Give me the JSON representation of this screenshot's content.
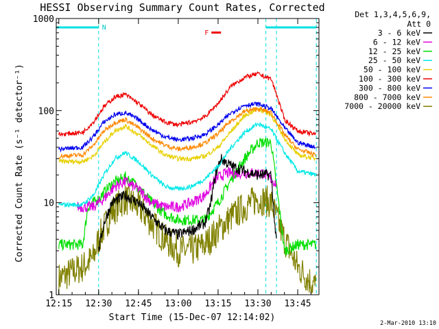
{
  "chart_data": {
    "type": "line",
    "title": "HESSI Observing Summary Count Rates, Corrected",
    "xlabel": "Start Time (15-Dec-07 12:14:02)",
    "ylabel": "Corrected Count Rate (s⁻¹ detector⁻¹)",
    "y_scale": "log",
    "ylim": [
      1,
      1000
    ],
    "xlim": [
      "12:14:02",
      "13:53"
    ],
    "x_tick_labels": [
      "12:15",
      "12:30",
      "12:45",
      "13:00",
      "13:15",
      "13:30",
      "13:45"
    ],
    "y_tick_labels": [
      "1",
      "10",
      "100",
      "1000"
    ],
    "legend_title_line1": "Det 1,3,4,5,6,9,",
    "legend_title_line2": "Att 0",
    "legend_position": "right, outside plot",
    "footer_text": "2-Mar-2010 13:10",
    "flag_labels": {
      "night": "N",
      "flare": "F"
    },
    "night_segments": [
      {
        "start": "12:14",
        "end": "12:30"
      },
      {
        "start": "13:33",
        "end": "13:52"
      }
    ],
    "vertical_markers": [
      "12:30",
      "13:33",
      "13:37",
      "13:52"
    ],
    "flare_flag_time": "13:13",
    "series": [
      {
        "name": "3 - 6 keV",
        "color": "#000000",
        "x": [
          "12:30",
          "12:32",
          "12:35",
          "12:40",
          "12:45",
          "12:50",
          "12:55",
          "13:00",
          "13:05",
          "13:10",
          "13:12",
          "13:14",
          "13:16",
          "13:20",
          "13:25",
          "13:30",
          "13:35",
          "13:37"
        ],
        "values": [
          3,
          6,
          10,
          12,
          10,
          7,
          5,
          4.5,
          5,
          6,
          9,
          20,
          30,
          25,
          22,
          20,
          20,
          3.5
        ]
      },
      {
        "name": "6 - 12 keV",
        "color": "#e000e0",
        "x": [
          "12:22",
          "12:28",
          "12:32",
          "12:36",
          "12:40",
          "12:45",
          "12:50",
          "12:55",
          "13:00",
          "13:05",
          "13:10",
          "13:14",
          "13:18",
          "13:25",
          "13:32",
          "13:37"
        ],
        "values": [
          9,
          9,
          11,
          15,
          17,
          14,
          10,
          9,
          9,
          10,
          12,
          18,
          21,
          21,
          21,
          16
        ]
      },
      {
        "name": "12 - 25 keV",
        "color": "#00e000",
        "x": [
          "12:15",
          "12:24",
          "12:26",
          "12:30",
          "12:35",
          "12:40",
          "12:45",
          "12:50",
          "12:55",
          "13:00",
          "13:05",
          "13:10",
          "13:15",
          "13:20",
          "13:25",
          "13:30",
          "13:35",
          "13:40",
          "13:45",
          "13:52"
        ],
        "values": [
          3.5,
          3.5,
          9,
          11,
          16,
          19,
          15,
          10,
          7.5,
          6.5,
          6.5,
          6.5,
          10,
          18,
          30,
          45,
          45,
          3,
          3.5,
          3.5
        ]
      },
      {
        "name": "25 - 50 keV",
        "color": "#00e8e8",
        "x": [
          "12:15",
          "12:24",
          "12:28",
          "12:32",
          "12:36",
          "12:40",
          "12:45",
          "12:50",
          "12:55",
          "13:00",
          "13:05",
          "13:10",
          "13:15",
          "13:20",
          "13:25",
          "13:30",
          "13:35",
          "13:40",
          "13:45",
          "13:52"
        ],
        "values": [
          9.5,
          9.5,
          12,
          20,
          30,
          35,
          28,
          20,
          15,
          14,
          15,
          18,
          25,
          40,
          58,
          72,
          62,
          35,
          22,
          20
        ]
      },
      {
        "name": "50 - 100 keV",
        "color": "#e8d000",
        "x": [
          "12:15",
          "12:24",
          "12:28",
          "12:32",
          "12:36",
          "12:40",
          "12:45",
          "12:50",
          "12:55",
          "13:00",
          "13:05",
          "13:10",
          "13:15",
          "13:20",
          "13:25",
          "13:30",
          "13:35",
          "13:40",
          "13:45",
          "13:52"
        ],
        "values": [
          28,
          28,
          32,
          45,
          60,
          68,
          55,
          42,
          33,
          30,
          30,
          32,
          40,
          60,
          88,
          105,
          90,
          50,
          33,
          30
        ]
      },
      {
        "name": "100 - 300 keV",
        "color": "#ee0000",
        "x": [
          "12:15",
          "12:24",
          "12:28",
          "12:32",
          "12:36",
          "12:40",
          "12:45",
          "12:50",
          "12:55",
          "13:00",
          "13:05",
          "13:10",
          "13:15",
          "13:20",
          "13:25",
          "13:30",
          "13:35",
          "13:37",
          "13:40",
          "13:45",
          "13:52"
        ],
        "values": [
          55,
          58,
          75,
          110,
          140,
          150,
          120,
          90,
          75,
          70,
          75,
          85,
          120,
          185,
          230,
          250,
          220,
          150,
          80,
          60,
          55
        ]
      },
      {
        "name": "300 - 800 keV",
        "color": "#0000ee",
        "x": [
          "12:15",
          "12:24",
          "12:28",
          "12:32",
          "12:36",
          "12:40",
          "12:45",
          "12:50",
          "12:55",
          "13:00",
          "13:05",
          "13:10",
          "13:15",
          "13:20",
          "13:25",
          "13:30",
          "13:35",
          "13:40",
          "13:45",
          "13:52"
        ],
        "values": [
          38,
          40,
          52,
          75,
          90,
          95,
          80,
          62,
          52,
          48,
          50,
          55,
          70,
          95,
          115,
          118,
          105,
          65,
          45,
          40
        ]
      },
      {
        "name": "800 - 7000 keV",
        "color": "#ff8800",
        "x": [
          "12:15",
          "12:24",
          "12:28",
          "12:32",
          "12:36",
          "12:40",
          "12:45",
          "12:50",
          "12:55",
          "13:00",
          "13:05",
          "13:10",
          "13:15",
          "13:20",
          "13:25",
          "13:30",
          "13:35",
          "13:40",
          "13:45",
          "13:52"
        ],
        "values": [
          32,
          33,
          42,
          60,
          74,
          80,
          65,
          50,
          42,
          38,
          40,
          44,
          56,
          78,
          98,
          105,
          95,
          55,
          38,
          33
        ]
      },
      {
        "name": "7000 - 20000 keV",
        "color": "#808000",
        "x": [
          "12:15",
          "12:24",
          "12:28",
          "12:30",
          "12:35",
          "12:40",
          "12:45",
          "12:50",
          "12:55",
          "13:00",
          "13:05",
          "13:10",
          "13:15",
          "13:20",
          "13:25",
          "13:30",
          "13:35",
          "13:40",
          "13:45",
          "13:52"
        ],
        "values": [
          1.5,
          2,
          2.5,
          4,
          8,
          11,
          9,
          6,
          4,
          3,
          3,
          3.5,
          5,
          7,
          9,
          11,
          10,
          4,
          2,
          1.2
        ]
      }
    ]
  }
}
